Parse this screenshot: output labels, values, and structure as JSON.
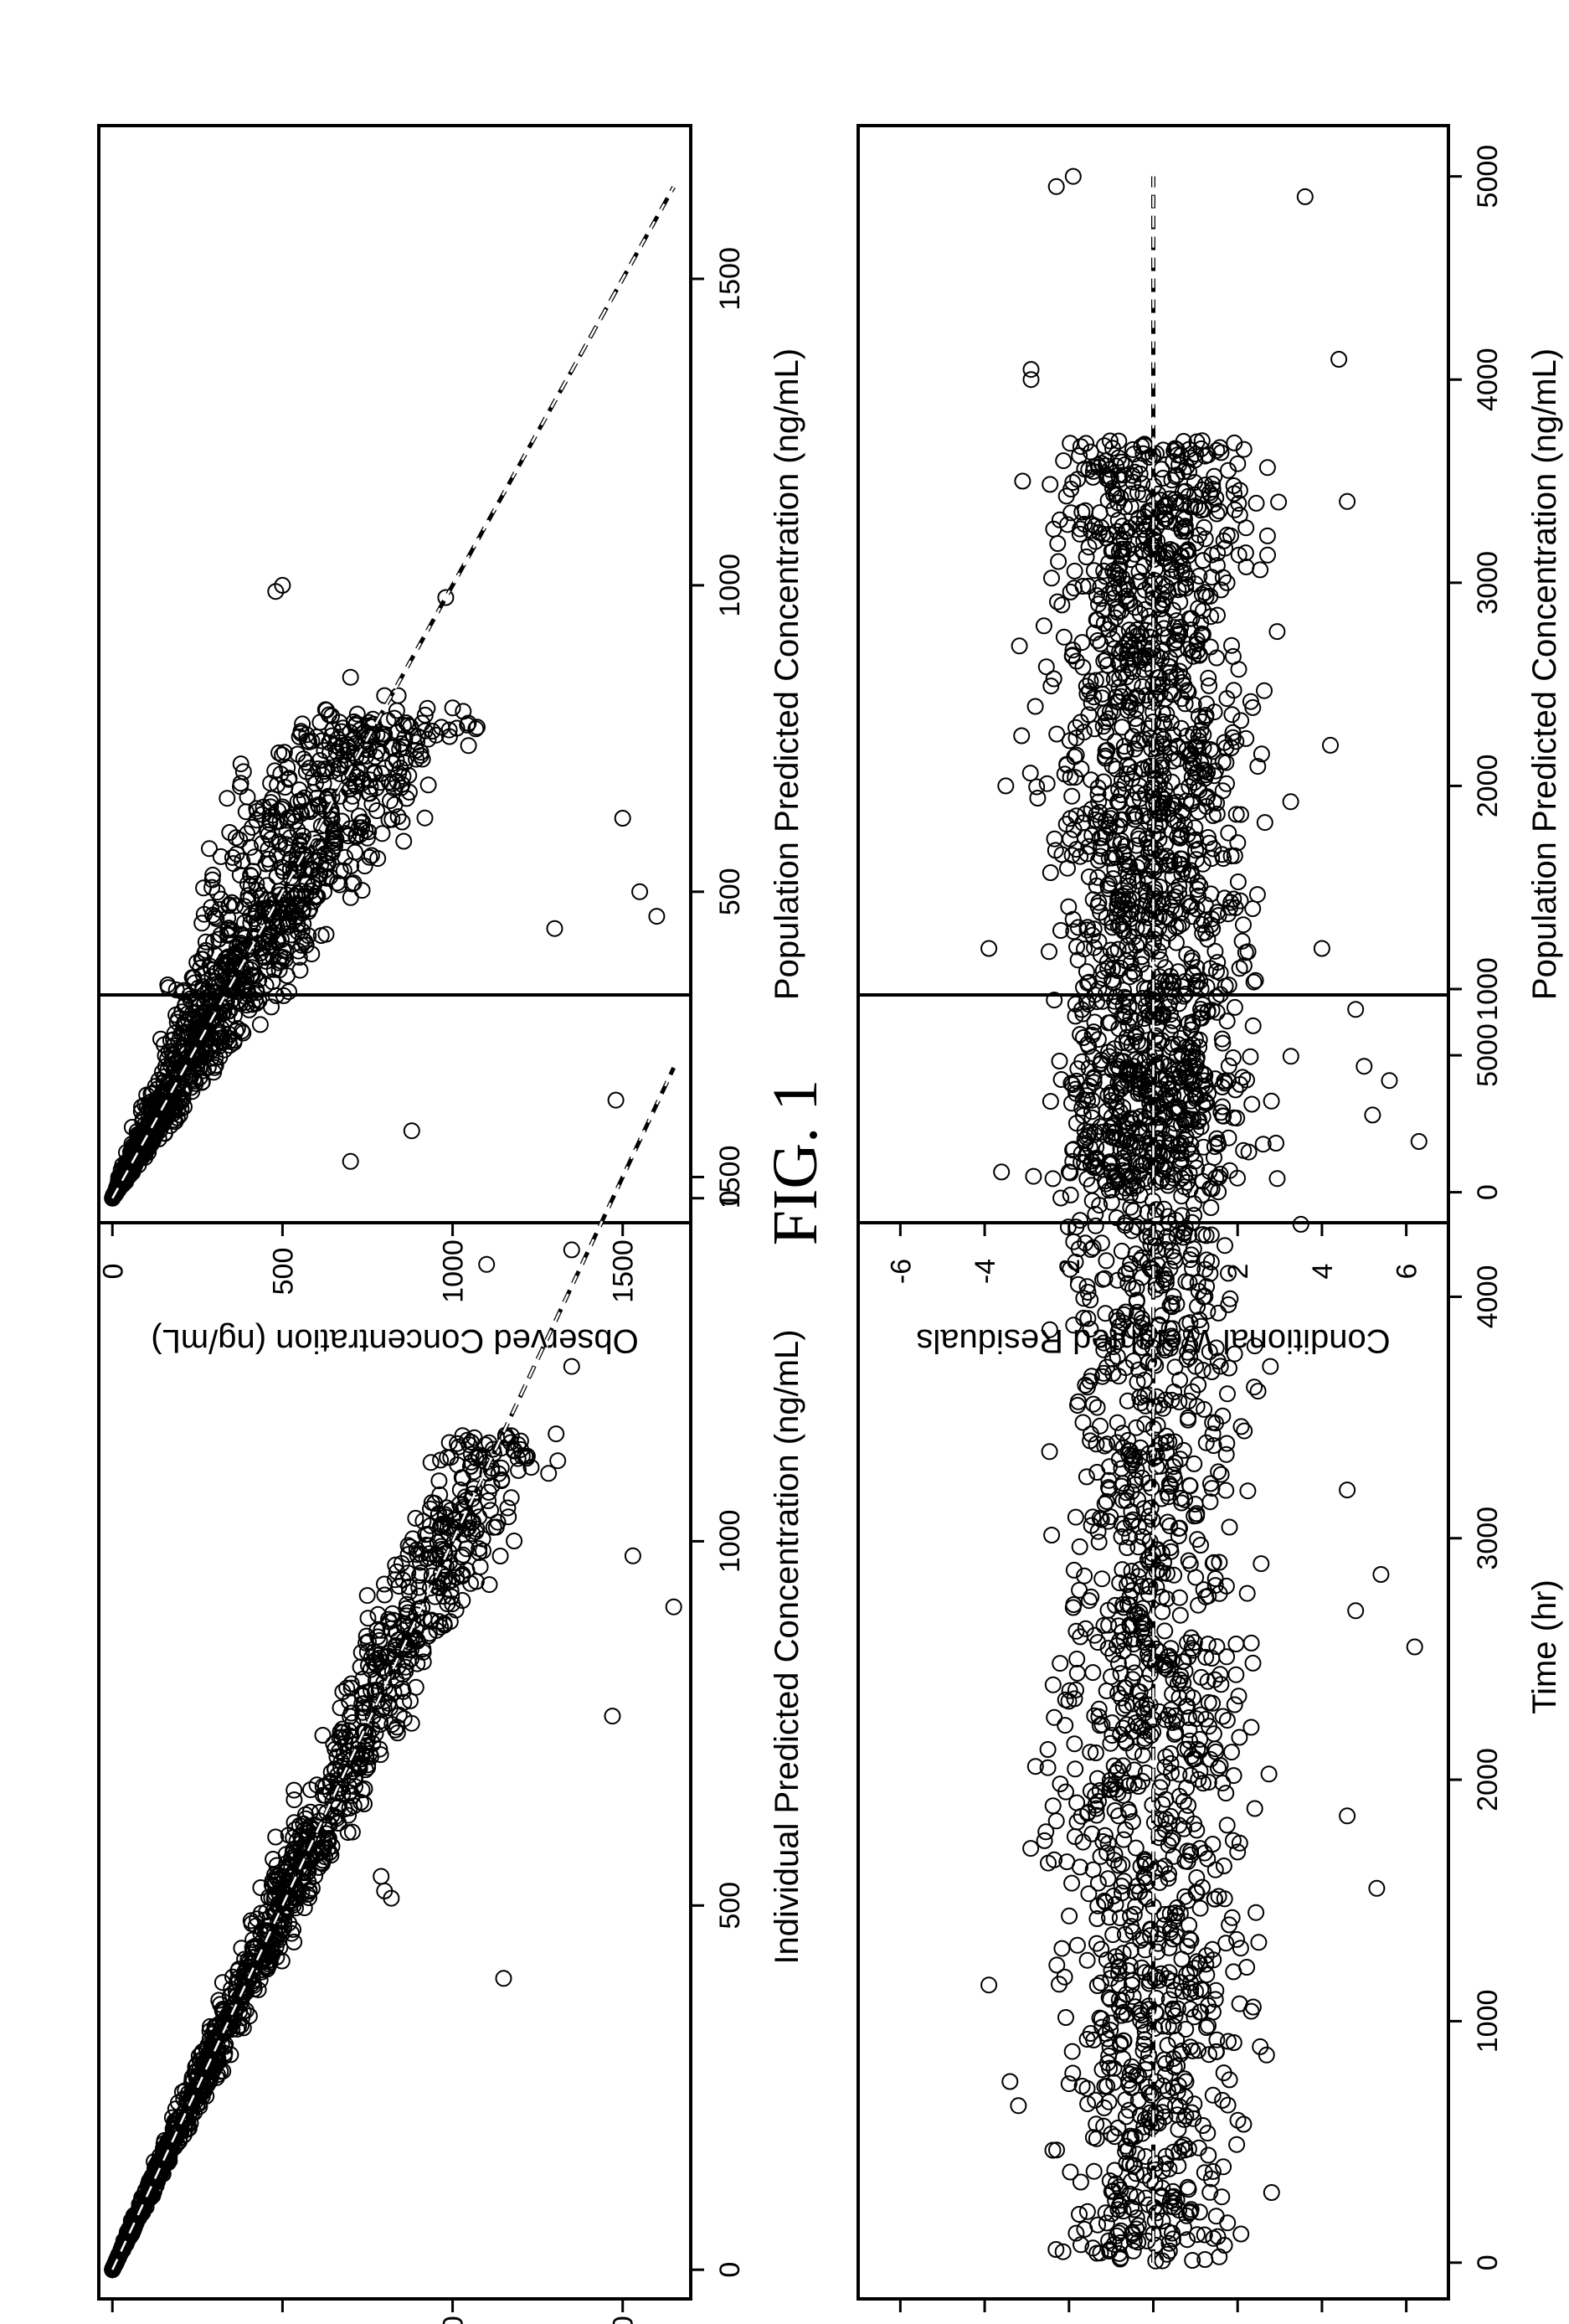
{
  "figure": {
    "title": "FIG. 1"
  },
  "chart_data": [
    {
      "id": "top-left",
      "type": "scatter",
      "xlabel": "Population Predicted Concentration (ng/mL)",
      "ylabel": "Observed Concentration (ng/mL)",
      "xlim": [
        -40,
        1750
      ],
      "ylim": [
        -40,
        1700
      ],
      "xticks": [
        0,
        500,
        1000,
        1500
      ],
      "yticks": [
        0,
        500,
        1000,
        1500
      ],
      "reference_line": {
        "from": [
          0,
          0
        ],
        "to": [
          1650,
          1650
        ]
      },
      "point_cloud": {
        "x_max": 800,
        "y_spread": 0.62,
        "count": 1300
      },
      "outliers": [
        [
          160,
          1480
        ],
        [
          460,
          1600
        ],
        [
          500,
          1550
        ],
        [
          440,
          1300
        ],
        [
          110,
          880
        ],
        [
          60,
          700
        ],
        [
          620,
          1500
        ],
        [
          820,
          840
        ],
        [
          800,
          1000
        ],
        [
          980,
          980
        ],
        [
          1000,
          500
        ],
        [
          990,
          480
        ],
        [
          790,
          720
        ],
        [
          820,
          800
        ],
        [
          850,
          700
        ]
      ]
    },
    {
      "id": "top-right",
      "type": "scatter",
      "xlabel": "Individual Predicted Concentration (ng/mL)",
      "ylabel": "",
      "xlim": [
        -40,
        1750
      ],
      "ylim": [
        -40,
        1700
      ],
      "xticks": [
        0,
        500,
        1000,
        1500
      ],
      "yticks": [
        0,
        500,
        1000,
        1500
      ],
      "reference_line": {
        "from": [
          0,
          0
        ],
        "to": [
          1650,
          1650
        ]
      },
      "point_cloud": {
        "x_max": 1150,
        "y_spread": 0.22,
        "count": 1300
      },
      "outliers": [
        [
          910,
          1650
        ],
        [
          760,
          1470
        ],
        [
          980,
          1530
        ],
        [
          1380,
          1100
        ],
        [
          1400,
          1350
        ],
        [
          1240,
          1350
        ],
        [
          510,
          820
        ],
        [
          520,
          800
        ],
        [
          540,
          790
        ],
        [
          400,
          1150
        ]
      ]
    },
    {
      "id": "bottom-left",
      "type": "scatter",
      "xlabel": "Population Predicted Concentration (ng/mL)",
      "ylabel": "Conditional Weighted Residuals",
      "xlim": [
        -150,
        5250
      ],
      "ylim": [
        -7,
        7
      ],
      "xticks": [
        0,
        1000,
        2000,
        3000,
        4000,
        5000
      ],
      "yticks": [
        6,
        4,
        2,
        0,
        -2,
        -4,
        -6
      ],
      "reference_line": {
        "from": [
          0,
          0
        ],
        "to": [
          5000,
          0
        ]
      },
      "point_cloud": {
        "x_max": 3700,
        "y_half_width": 2.6,
        "count": 1400
      },
      "outliers": [
        [
          250,
          6.3
        ],
        [
          550,
          5.6
        ],
        [
          380,
          5.2
        ],
        [
          620,
          5.0
        ],
        [
          900,
          4.8
        ],
        [
          1200,
          4.0
        ],
        [
          2200,
          4.2
        ],
        [
          3400,
          4.6
        ],
        [
          4100,
          4.4
        ],
        [
          4900,
          3.6
        ],
        [
          1200,
          -3.9
        ],
        [
          2000,
          -3.5
        ],
        [
          3500,
          -3.1
        ],
        [
          4000,
          -2.9
        ],
        [
          4050,
          -2.9
        ],
        [
          4950,
          -2.3
        ],
        [
          100,
          -3.6
        ],
        [
          5000,
          -1.9
        ]
      ]
    },
    {
      "id": "bottom-right",
      "type": "scatter",
      "xlabel": "Time (hr)",
      "ylabel": "",
      "xlim": [
        -150,
        5250
      ],
      "ylim": [
        -7,
        7
      ],
      "xticks": [
        0,
        1000,
        2000,
        3000,
        4000,
        5000
      ],
      "yticks": [
        6,
        4,
        2,
        0,
        -2,
        -4,
        -6
      ],
      "reference_line": {
        "from": [
          0,
          0
        ],
        "to": [
          5000,
          0
        ]
      },
      "point_cloud": {
        "x_max": 5000,
        "y_half_width": 2.4,
        "count": 1400
      },
      "outliers": [
        [
          2550,
          6.2
        ],
        [
          2850,
          5.4
        ],
        [
          2700,
          4.8
        ],
        [
          1850,
          4.6
        ],
        [
          3200,
          4.6
        ],
        [
          1550,
          5.3
        ],
        [
          1150,
          -3.9
        ],
        [
          650,
          -3.2
        ],
        [
          750,
          -3.4
        ],
        [
          2050,
          -2.5
        ],
        [
          4300,
          3.5
        ]
      ]
    }
  ]
}
